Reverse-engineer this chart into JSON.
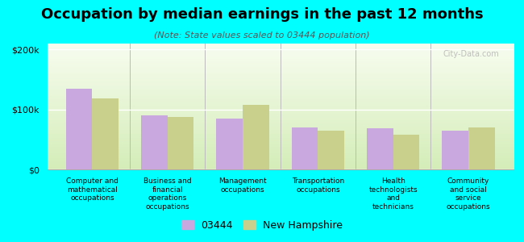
{
  "title": "Occupation by median earnings in the past 12 months",
  "subtitle": "(Note: State values scaled to 03444 population)",
  "categories": [
    "Computer and\nmathematical\noccupations",
    "Business and\nfinancial\noperations\noccupations",
    "Management\noccupations",
    "Transportation\noccupations",
    "Health\ntechnologists\nand\ntechnicians",
    "Community\nand social\nservice\noccupations"
  ],
  "values_03444": [
    135000,
    90000,
    85000,
    70000,
    68000,
    65000
  ],
  "values_nh": [
    118000,
    88000,
    108000,
    65000,
    58000,
    70000
  ],
  "bar_color_03444": "#c9a8e0",
  "bar_color_nh": "#c8d08c",
  "background_color": "#00ffff",
  "ylim": [
    0,
    210000
  ],
  "yticks": [
    0,
    100000,
    200000
  ],
  "ytick_labels": [
    "$0",
    "$100k",
    "$200k"
  ],
  "legend_03444": "03444",
  "legend_nh": "New Hampshire",
  "watermark": "City-Data.com",
  "bar_width": 0.35,
  "title_fontsize": 13,
  "subtitle_fontsize": 8,
  "tick_fontsize": 8,
  "legend_fontsize": 9,
  "grad_top": "#f8fdf0",
  "grad_bottom": "#d4edb8"
}
